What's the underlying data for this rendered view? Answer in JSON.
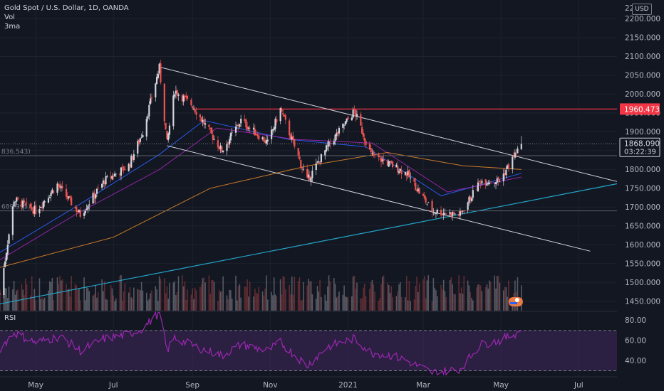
{
  "legend": {
    "symbol": "Gold Spot / U.S. Dollar, 1D, OANDA",
    "volume": "Vol",
    "ma": "3ma"
  },
  "rsi": {
    "label": "RSI"
  },
  "currency_badge": "USD",
  "colors": {
    "background": "#131722",
    "grid": "#1e222d",
    "candle_up": "#d1d4dc",
    "candle_down": "#ef5350",
    "channel": "#d1d4dc",
    "resistance": "#f23645",
    "trendline": "#22a5c9",
    "ma_fast": "#2962ff",
    "ma_mid": "#9c27b0",
    "ma_slow": "#e0862a",
    "rsi": "#9c27b0",
    "rsi_band": "#4a2a6a"
  },
  "chart_data": [
    {
      "type": "line",
      "title": "Gold Spot / U.S. Dollar, 1D, OANDA",
      "ylim": [
        1425,
        2250
      ],
      "y_ticks": [
        1450,
        1500,
        1550,
        1600,
        1650,
        1700,
        1750,
        1800,
        1850,
        1900,
        1950,
        2000,
        2050,
        2100,
        2150,
        2200
      ],
      "y_tick_labels": [
        "1450.000",
        "1500.000",
        "1550.000",
        "1600.000",
        "1650.000",
        "1700.000",
        "1750.000",
        "1800.000",
        "1850.000",
        "1900.000",
        "1950.000",
        "2000.000",
        "2050.000",
        "2100.000",
        "2150.000",
        "2200.000"
      ],
      "y_tick_partial": "22",
      "x_tick_labels": [
        "May",
        "Jul",
        "Sep",
        "Nov",
        "2021",
        "Mar",
        "May",
        "Jul"
      ],
      "x_range": [
        "2020-04-03",
        "2021-07-31"
      ],
      "x_tick_dates": [
        "2020-05-01",
        "2020-07-01",
        "2020-09-01",
        "2020-11-01",
        "2021-01-01",
        "2021-03-01",
        "2021-05-01",
        "2021-07-01"
      ],
      "price_path": [
        [
          "2020-04-03",
          1470
        ],
        [
          "2020-04-14",
          1720
        ],
        [
          "2020-05-01",
          1690
        ],
        [
          "2020-05-18",
          1760
        ],
        [
          "2020-06-05",
          1680
        ],
        [
          "2020-06-24",
          1770
        ],
        [
          "2020-07-13",
          1810
        ],
        [
          "2020-07-24",
          1900
        ],
        [
          "2020-08-06",
          2070
        ],
        [
          "2020-08-12",
          1870
        ],
        [
          "2020-08-18",
          2010
        ],
        [
          "2020-09-01",
          1970
        ],
        [
          "2020-09-24",
          1850
        ],
        [
          "2020-10-09",
          1930
        ],
        [
          "2020-10-30",
          1870
        ],
        [
          "2020-11-09",
          1960
        ],
        [
          "2020-11-30",
          1770
        ],
        [
          "2020-12-16",
          1860
        ],
        [
          "2021-01-06",
          1955
        ],
        [
          "2021-01-19",
          1840
        ],
        [
          "2021-02-05",
          1810
        ],
        [
          "2021-02-16",
          1790
        ],
        [
          "2021-03-08",
          1690
        ],
        [
          "2021-03-30",
          1680
        ],
        [
          "2021-04-15",
          1770
        ],
        [
          "2021-04-30",
          1770
        ],
        [
          "2021-05-17",
          1868.09
        ]
      ],
      "volume_range": [
        0,
        100
      ],
      "moving_averages": [
        {
          "points": [
            [
              "2020-04-03",
              1580
            ],
            [
              "2020-06-01",
              1700
            ],
            [
              "2020-08-06",
              1840
            ],
            [
              "2020-09-10",
              1930
            ],
            [
              "2020-11-15",
              1880
            ],
            [
              "2021-01-15",
              1860
            ],
            [
              "2021-03-15",
              1730
            ],
            [
              "2021-05-17",
              1790
            ]
          ]
        },
        {
          "points": [
            [
              "2020-04-03",
              1560
            ],
            [
              "2020-06-01",
              1680
            ],
            [
              "2020-08-06",
              1800
            ],
            [
              "2020-09-20",
              1910
            ],
            [
              "2020-11-20",
              1880
            ],
            [
              "2021-01-20",
              1870
            ],
            [
              "2021-03-20",
              1740
            ],
            [
              "2021-05-17",
              1780
            ]
          ]
        },
        {
          "points": [
            [
              "2020-04-03",
              1540
            ],
            [
              "2020-07-01",
              1620
            ],
            [
              "2020-09-15",
              1750
            ],
            [
              "2020-12-01",
              1810
            ],
            [
              "2021-02-01",
              1845
            ],
            [
              "2021-04-01",
              1810
            ],
            [
              "2021-05-17",
              1800
            ]
          ]
        }
      ],
      "drawings": {
        "channel_upper": [
          [
            "2020-08-06",
            2072
          ],
          [
            "2021-07-31",
            1768
          ]
        ],
        "channel_lower": [
          [
            "2020-08-12",
            1863
          ],
          [
            "2021-07-10",
            1583
          ]
        ],
        "trendline": [
          [
            "2020-04-03",
            1443
          ],
          [
            "2021-07-31",
            1762
          ]
        ],
        "resistance": {
          "value": 1960.473,
          "from": "2020-09-01"
        },
        "level_upper": 1836.543,
        "level_lower": 1689.995
      },
      "level_labels": {
        "upper": "836.543)",
        "lower": "689.995)"
      },
      "price_labels": {
        "resistance": "1960.473",
        "last": "1868.090",
        "countdown": "03:22:39"
      },
      "last_price": 1868.09
    },
    {
      "type": "line",
      "title": "RSI",
      "ylim": [
        24,
        89
      ],
      "y_ticks": [
        40,
        60,
        80
      ],
      "y_tick_labels": [
        "40.00",
        "60.00",
        "80.00"
      ],
      "bands": [
        30,
        70
      ],
      "points": [
        [
          "2020-04-03",
          52
        ],
        [
          "2020-04-14",
          68
        ],
        [
          "2020-05-01",
          58
        ],
        [
          "2020-05-20",
          64
        ],
        [
          "2020-06-05",
          50
        ],
        [
          "2020-06-24",
          62
        ],
        [
          "2020-07-13",
          66
        ],
        [
          "2020-07-24",
          72
        ],
        [
          "2020-08-06",
          88
        ],
        [
          "2020-08-12",
          50
        ],
        [
          "2020-08-18",
          63
        ],
        [
          "2020-09-01",
          55
        ],
        [
          "2020-09-24",
          45
        ],
        [
          "2020-10-09",
          56
        ],
        [
          "2020-10-30",
          50
        ],
        [
          "2020-11-09",
          58
        ],
        [
          "2020-11-30",
          35
        ],
        [
          "2020-12-16",
          54
        ],
        [
          "2021-01-06",
          62
        ],
        [
          "2021-01-19",
          48
        ],
        [
          "2021-02-05",
          45
        ],
        [
          "2021-02-16",
          40
        ],
        [
          "2021-03-08",
          28
        ],
        [
          "2021-03-30",
          32
        ],
        [
          "2021-04-15",
          56
        ],
        [
          "2021-04-30",
          60
        ],
        [
          "2021-05-17",
          70
        ]
      ]
    }
  ]
}
